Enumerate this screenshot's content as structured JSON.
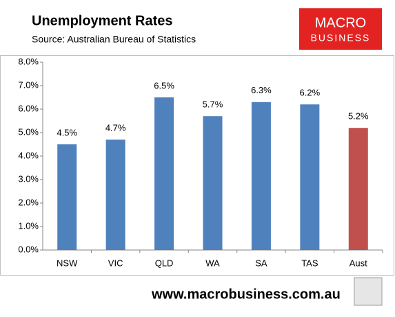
{
  "chart_data": {
    "type": "bar",
    "title": "Unemployment Rates",
    "subtitle": "Source: Australian Bureau of Statistics",
    "logo": [
      "MACRO",
      "BUSINESS"
    ],
    "footer": "www.macrobusiness.com.au",
    "categories": [
      "NSW",
      "VIC",
      "QLD",
      "WA",
      "SA",
      "TAS",
      "Aust"
    ],
    "values": [
      4.5,
      4.7,
      6.5,
      5.7,
      6.3,
      6.2,
      5.2
    ],
    "value_labels": [
      "4.5%",
      "4.7%",
      "6.5%",
      "5.7%",
      "6.3%",
      "6.2%",
      "5.2%"
    ],
    "colors": [
      "#4f81bd",
      "#4f81bd",
      "#4f81bd",
      "#4f81bd",
      "#4f81bd",
      "#4f81bd",
      "#c0504d"
    ],
    "ylim": [
      0,
      8
    ],
    "yticks": [
      {
        "value": 0,
        "label": "0.0%"
      },
      {
        "value": 1,
        "label": "1.0%"
      },
      {
        "value": 2,
        "label": "2.0%"
      },
      {
        "value": 3,
        "label": "3.0%"
      },
      {
        "value": 4,
        "label": "4.0%"
      },
      {
        "value": 5,
        "label": "5.0%"
      },
      {
        "value": 6,
        "label": "6.0%"
      },
      {
        "value": 7,
        "label": "7.0%"
      },
      {
        "value": 8,
        "label": "8.0%"
      }
    ],
    "grid": false
  }
}
